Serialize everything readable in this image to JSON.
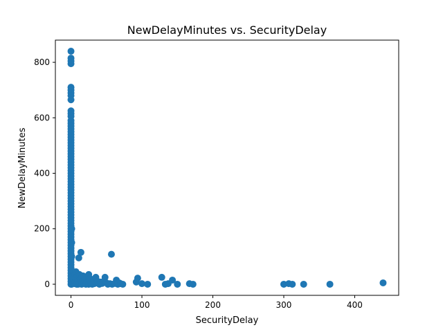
{
  "chart_data": {
    "type": "scatter",
    "title": "NewDelayMinutes vs. SecurityDelay",
    "xlabel": "SecurityDelay",
    "ylabel": "NewDelayMinutes",
    "xlim": [
      -22,
      462
    ],
    "ylim": [
      -40,
      880
    ],
    "xticks": [
      0,
      100,
      200,
      300,
      400
    ],
    "yticks": [
      0,
      200,
      400,
      600,
      800
    ],
    "grid": false,
    "legend": "none",
    "marker_color": "#1f77b4",
    "series": [
      {
        "points": [
          [
            0,
            840
          ],
          [
            0,
            815
          ],
          [
            0,
            805
          ],
          [
            0,
            795
          ],
          [
            0,
            710
          ],
          [
            0,
            700
          ],
          [
            0,
            690
          ],
          [
            0,
            680
          ],
          [
            0,
            665
          ],
          [
            0,
            625
          ],
          [
            0,
            615
          ],
          [
            0,
            605
          ],
          [
            0,
            590
          ],
          [
            0,
            580
          ],
          [
            0,
            570
          ],
          [
            0,
            560
          ],
          [
            0,
            550
          ],
          [
            0,
            540
          ],
          [
            0,
            530
          ],
          [
            0,
            520
          ],
          [
            0,
            510
          ],
          [
            0,
            500
          ],
          [
            0,
            490
          ],
          [
            0,
            480
          ],
          [
            0,
            470
          ],
          [
            0,
            460
          ],
          [
            0,
            450
          ],
          [
            0,
            440
          ],
          [
            0,
            430
          ],
          [
            0,
            420
          ],
          [
            0,
            410
          ],
          [
            0,
            400
          ],
          [
            0,
            390
          ],
          [
            0,
            380
          ],
          [
            0,
            370
          ],
          [
            0,
            360
          ],
          [
            0,
            350
          ],
          [
            0,
            340
          ],
          [
            0,
            330
          ],
          [
            0,
            320
          ],
          [
            0,
            310
          ],
          [
            0,
            300
          ],
          [
            0,
            290
          ],
          [
            0,
            280
          ],
          [
            0,
            270
          ],
          [
            0,
            260
          ],
          [
            0,
            250
          ],
          [
            0,
            240
          ],
          [
            0,
            230
          ],
          [
            0,
            220
          ],
          [
            0,
            210
          ],
          [
            0,
            200
          ],
          [
            0,
            190
          ],
          [
            0,
            180
          ],
          [
            0,
            170
          ],
          [
            0,
            160
          ],
          [
            0,
            150
          ],
          [
            0,
            140
          ],
          [
            0,
            130
          ],
          [
            0,
            120
          ],
          [
            0,
            110
          ],
          [
            0,
            100
          ],
          [
            0,
            90
          ],
          [
            0,
            80
          ],
          [
            0,
            70
          ],
          [
            0,
            60
          ],
          [
            0,
            50
          ],
          [
            0,
            40
          ],
          [
            0,
            30
          ],
          [
            0,
            20
          ],
          [
            0,
            10
          ],
          [
            0,
            0
          ],
          [
            1,
            200
          ],
          [
            1,
            150
          ],
          [
            1,
            100
          ],
          [
            1,
            50
          ],
          [
            1,
            0
          ],
          [
            2,
            30
          ],
          [
            2,
            10
          ],
          [
            3,
            20
          ],
          [
            3,
            5
          ],
          [
            4,
            40
          ],
          [
            4,
            15
          ],
          [
            5,
            25
          ],
          [
            5,
            2
          ],
          [
            6,
            35
          ],
          [
            6,
            8
          ],
          [
            7,
            45
          ],
          [
            7,
            3
          ],
          [
            8,
            20
          ],
          [
            8,
            0
          ],
          [
            9,
            30
          ],
          [
            9,
            5
          ],
          [
            10,
            15
          ],
          [
            10,
            0
          ],
          [
            11,
            95
          ],
          [
            12,
            35
          ],
          [
            12,
            5
          ],
          [
            13,
            20
          ],
          [
            14,
            115
          ],
          [
            14,
            2
          ],
          [
            15,
            25
          ],
          [
            15,
            0
          ],
          [
            16,
            10
          ],
          [
            17,
            30
          ],
          [
            18,
            5
          ],
          [
            19,
            15
          ],
          [
            20,
            25
          ],
          [
            21,
            0
          ],
          [
            22,
            10
          ],
          [
            23,
            5
          ],
          [
            25,
            35
          ],
          [
            25,
            0
          ],
          [
            27,
            20
          ],
          [
            28,
            5
          ],
          [
            30,
            10
          ],
          [
            30,
            0
          ],
          [
            32,
            15
          ],
          [
            33,
            2
          ],
          [
            35,
            25
          ],
          [
            36,
            5
          ],
          [
            38,
            10
          ],
          [
            40,
            0
          ],
          [
            42,
            8
          ],
          [
            44,
            3
          ],
          [
            48,
            25
          ],
          [
            50,
            5
          ],
          [
            52,
            0
          ],
          [
            55,
            2
          ],
          [
            57,
            108
          ],
          [
            58,
            0
          ],
          [
            62,
            3
          ],
          [
            64,
            15
          ],
          [
            66,
            0
          ],
          [
            68,
            5
          ],
          [
            70,
            2
          ],
          [
            73,
            0
          ],
          [
            92,
            8
          ],
          [
            94,
            22
          ],
          [
            100,
            2
          ],
          [
            108,
            0
          ],
          [
            128,
            25
          ],
          [
            133,
            0
          ],
          [
            137,
            2
          ],
          [
            143,
            15
          ],
          [
            150,
            0
          ],
          [
            167,
            2
          ],
          [
            172,
            0
          ],
          [
            300,
            0
          ],
          [
            307,
            2
          ],
          [
            312,
            0
          ],
          [
            328,
            0
          ],
          [
            365,
            0
          ],
          [
            440,
            5
          ]
        ]
      }
    ]
  }
}
